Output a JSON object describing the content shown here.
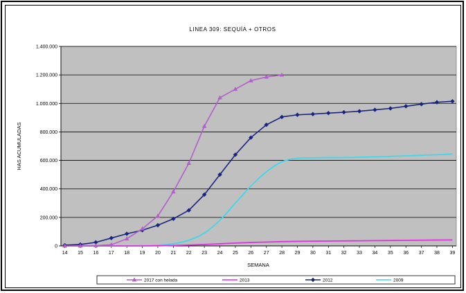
{
  "chart_data": {
    "type": "line",
    "title": "LINEA 309: SEQUÍA + OTROS",
    "xlabel": "SEMANA",
    "ylabel": "HAS ACUMULADAS",
    "x": [
      14,
      15,
      16,
      17,
      18,
      19,
      20,
      21,
      22,
      23,
      24,
      25,
      26,
      27,
      28,
      29,
      30,
      31,
      32,
      33,
      34,
      35,
      36,
      37,
      38,
      39
    ],
    "ylim": [
      0,
      1400000
    ],
    "yticks": [
      0,
      200000,
      400000,
      600000,
      800000,
      1000000,
      1200000,
      1400000
    ],
    "ytick_labels": [
      "0",
      "200.000",
      "400.000",
      "600.000",
      "800.000",
      "1.000.000",
      "1.200.000",
      "1.400.000"
    ],
    "grid": "horizontal",
    "legend_position": "bottom",
    "plot_background": "#c0c0c0",
    "series": [
      {
        "name": "2017 con helada",
        "color": "#b060c8",
        "marker": "triangle",
        "x": [
          14,
          15,
          16,
          17,
          18,
          19,
          20,
          21,
          22,
          23,
          24,
          25,
          26,
          27,
          28
        ],
        "values": [
          0,
          0,
          2000,
          8000,
          50000,
          120000,
          210000,
          380000,
          580000,
          840000,
          1040000,
          1100000,
          1160000,
          1185000,
          1200000
        ]
      },
      {
        "name": "2013",
        "color": "#e030e0",
        "marker": "none",
        "x": [
          14,
          15,
          16,
          17,
          18,
          19,
          20,
          21,
          22,
          23,
          24,
          25,
          26,
          27,
          28,
          29,
          30,
          31,
          32,
          33,
          34,
          35,
          36,
          37,
          38,
          39
        ],
        "values": [
          0,
          0,
          0,
          0,
          0,
          0,
          1000,
          3000,
          6000,
          10000,
          15000,
          20000,
          24000,
          27000,
          30000,
          32000,
          33000,
          34000,
          35000,
          36000,
          37000,
          38000,
          39000,
          40000,
          41000,
          42000
        ]
      },
      {
        "name": "2012",
        "color": "#1a237e",
        "marker": "diamond",
        "x": [
          14,
          15,
          16,
          17,
          18,
          19,
          20,
          21,
          22,
          23,
          24,
          25,
          26,
          27,
          28,
          29,
          30,
          31,
          32,
          33,
          34,
          35,
          36,
          37,
          38,
          39
        ],
        "values": [
          5000,
          10000,
          25000,
          55000,
          85000,
          110000,
          145000,
          190000,
          250000,
          360000,
          500000,
          640000,
          760000,
          850000,
          905000,
          920000,
          925000,
          932000,
          938000,
          945000,
          955000,
          965000,
          980000,
          995000,
          1008000,
          1015000
        ]
      },
      {
        "name": "2009",
        "color": "#40d8e8",
        "marker": "none",
        "x": [
          14,
          15,
          16,
          17,
          18,
          19,
          20,
          21,
          22,
          23,
          24,
          25,
          26,
          27,
          28,
          29,
          30,
          31,
          32,
          33,
          34,
          35,
          36,
          37,
          38,
          39
        ],
        "values": [
          0,
          0,
          0,
          0,
          0,
          2000,
          5000,
          15000,
          40000,
          90000,
          180000,
          300000,
          420000,
          520000,
          590000,
          615000,
          618000,
          620000,
          620000,
          622000,
          625000,
          628000,
          632000,
          636000,
          640000,
          645000
        ]
      }
    ]
  }
}
